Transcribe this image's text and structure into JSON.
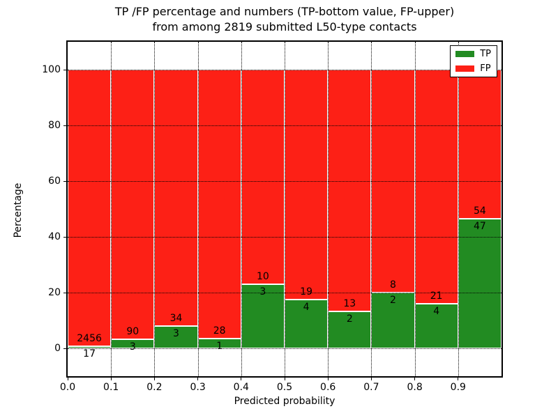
{
  "title": {
    "line1": "TP /FP percentage and numbers (TP-bottom value, FP-upper)",
    "line2": "from among 2819 submitted L50-type contacts"
  },
  "chart_data": {
    "type": "bar",
    "stacked": true,
    "normalized": "each bin scaled to 100%",
    "title": "TP /FP percentage and numbers (TP-bottom value, FP-upper) from among 2819 submitted L50-type contacts",
    "total_contacts": 2819,
    "xlabel": "Predicted probability",
    "ylabel": "Percentage",
    "xlim": [
      0.0,
      1.0
    ],
    "ylim": [
      -10,
      110
    ],
    "xtick_labels": [
      "0.0",
      "0.1",
      "0.2",
      "0.3",
      "0.4",
      "0.5",
      "0.6",
      "0.7",
      "0.8",
      "0.9"
    ],
    "ytick_labels": [
      "0",
      "20",
      "40",
      "60",
      "80",
      "100"
    ],
    "grid": "dotted, drawn above bars",
    "legend_position": "upper right",
    "series": [
      {
        "name": "TP",
        "color": "#228b22"
      },
      {
        "name": "FP",
        "color": "#fd2016"
      }
    ],
    "bins": [
      {
        "range": [
          0.0,
          0.1
        ],
        "tp": 17,
        "fp": 2456
      },
      {
        "range": [
          0.1,
          0.2
        ],
        "tp": 3,
        "fp": 90
      },
      {
        "range": [
          0.2,
          0.3
        ],
        "tp": 3,
        "fp": 34
      },
      {
        "range": [
          0.3,
          0.4
        ],
        "tp": 1,
        "fp": 28
      },
      {
        "range": [
          0.4,
          0.5
        ],
        "tp": 3,
        "fp": 10
      },
      {
        "range": [
          0.5,
          0.6
        ],
        "tp": 4,
        "fp": 19
      },
      {
        "range": [
          0.6,
          0.7
        ],
        "tp": 2,
        "fp": 13
      },
      {
        "range": [
          0.7,
          0.8
        ],
        "tp": 2,
        "fp": 8
      },
      {
        "range": [
          0.8,
          0.9
        ],
        "tp": 4,
        "fp": 21
      },
      {
        "range": [
          0.9,
          1.0
        ],
        "tp": 47,
        "fp": 54
      }
    ]
  }
}
